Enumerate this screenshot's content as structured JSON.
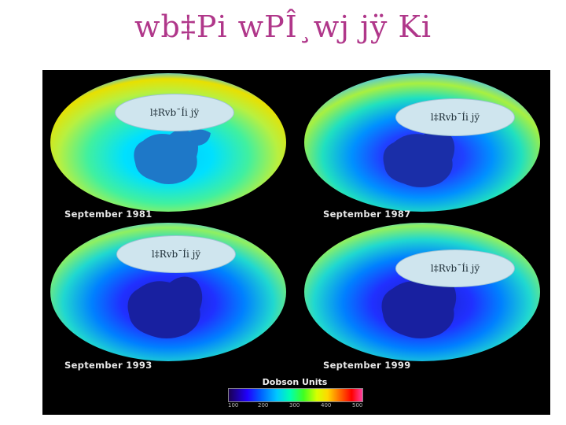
{
  "slide": {
    "title": "wb‡Pi wPÎ¸wj jÿ Ki"
  },
  "panels": [
    {
      "caption": "September 1981",
      "bubble_text": "l‡Rvb¯Íi jÿ",
      "hole": "small"
    },
    {
      "caption": "September 1987",
      "bubble_text": "l‡Rvb¯Íi jÿ",
      "hole": "large"
    },
    {
      "caption": "September 1993",
      "bubble_text": "l‡Rvb¯Íi jÿ",
      "hole": "large"
    },
    {
      "caption": "September 1999",
      "bubble_text": "l‡Rvb¯Íi jÿ",
      "hole": "large"
    }
  ],
  "legend": {
    "title": "Dobson Units",
    "ticks": [
      "100",
      "200",
      "300",
      "400",
      "500"
    ]
  },
  "colors": {
    "title": "#b0378a",
    "background": "#000000",
    "bubble": "#cfe5ee"
  }
}
